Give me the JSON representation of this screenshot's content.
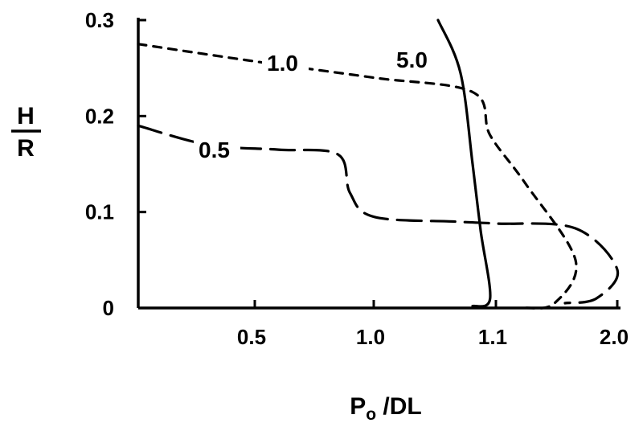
{
  "chart_data": {
    "type": "line",
    "xlabel": "P",
    "xlabel_subscript": "o",
    "xlabel_suffix": " /DL",
    "ylabel_numerator": "H",
    "ylabel_denominator": "R",
    "ylim": [
      0,
      0.3
    ],
    "x_tick_labels": [
      "0.5",
      "1.0",
      "1.1",
      "2.0"
    ],
    "y_tick_labels": [
      "0",
      "0.1",
      "0.2",
      "0.3"
    ],
    "grid": false,
    "legend": "none",
    "series": [
      {
        "name": "0.5",
        "style": "long-dash",
        "points": [
          [
            0.0,
            0.19
          ],
          [
            0.3,
            0.17
          ],
          [
            0.6,
            0.165
          ],
          [
            0.85,
            0.16
          ],
          [
            0.9,
            0.12
          ],
          [
            1.0,
            0.095
          ],
          [
            1.2,
            0.09
          ],
          [
            1.5,
            0.088
          ],
          [
            1.8,
            0.083
          ],
          [
            2.0,
            0.04
          ],
          [
            1.9,
            0.01
          ],
          [
            1.75,
            0.005
          ]
        ]
      },
      {
        "name": "1.0",
        "style": "dash",
        "points": [
          [
            0.0,
            0.275
          ],
          [
            0.5,
            0.257
          ],
          [
            1.0,
            0.24
          ],
          [
            1.3,
            0.225
          ],
          [
            1.45,
            0.18
          ],
          [
            1.6,
            0.13
          ],
          [
            1.8,
            0.05
          ],
          [
            1.7,
            0.005
          ],
          [
            1.6,
            0.0
          ]
        ]
      },
      {
        "name": "5.0",
        "style": "solid",
        "points": [
          [
            1.1,
            0.3
          ],
          [
            1.23,
            0.245
          ],
          [
            1.3,
            0.15
          ],
          [
            1.37,
            0.08
          ],
          [
            1.45,
            0.01
          ],
          [
            1.3,
            0.002
          ]
        ]
      }
    ]
  }
}
